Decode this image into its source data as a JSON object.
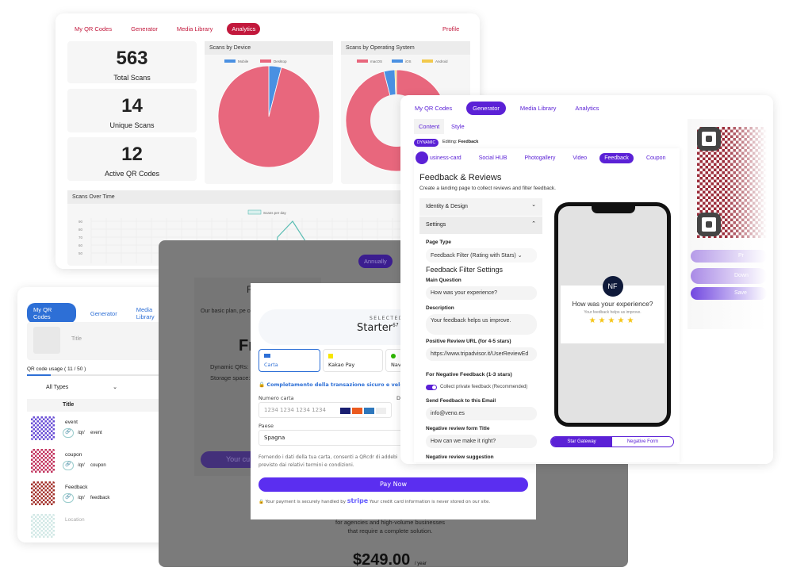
{
  "analytics": {
    "nav": [
      "My QR Codes",
      "Generator",
      "Media Library",
      "Analytics"
    ],
    "profile": "Profile",
    "stats": [
      {
        "value": "563",
        "label": "Total Scans"
      },
      {
        "value": "14",
        "label": "Unique Scans"
      },
      {
        "value": "12",
        "label": "Active QR Codes"
      }
    ],
    "device_title": "Scans by Device",
    "os_title": "Scans by Operating System",
    "time_title": "Scans Over Time",
    "chart_data": [
      {
        "type": "pie",
        "title": "Scans by Device",
        "categories": [
          "Mobile",
          "Desktop"
        ],
        "values": [
          4,
          96
        ],
        "colors": [
          "#4a90e2",
          "#e8677d"
        ],
        "legend": "top"
      },
      {
        "type": "pie",
        "title": "Scans by Operating System",
        "categories": [
          "macOS",
          "iOS",
          "Android"
        ],
        "values": [
          96,
          3.5,
          0.5
        ],
        "colors": [
          "#e8677d",
          "#4a90e2",
          "#f2c94c"
        ],
        "legend": "top"
      },
      {
        "type": "line",
        "title": "Scans Over Time",
        "series": [
          {
            "name": "Scans per day"
          }
        ],
        "y_ticks": [
          50,
          60,
          70,
          80,
          90
        ],
        "grid": true
      }
    ]
  },
  "qrlist": {
    "nav": [
      "My QR Codes",
      "Generator",
      "Media Library"
    ],
    "title_placeholder": "Title",
    "usage": "QR code usage ( 11 / 50 )",
    "usage_fraction": 0.22,
    "filter": "All Types",
    "column": "Title",
    "prefix": "/qr/",
    "items": [
      {
        "name": "event",
        "slug": "event"
      },
      {
        "name": "coupon",
        "slug": "coupon"
      },
      {
        "name": "Feedback",
        "slug": "feedback"
      },
      {
        "name": "Location",
        "slug": ""
      }
    ]
  },
  "pricing": {
    "annually": "Annually",
    "plan_initial": "F",
    "plan_desc": "Our basic plan, pe core capabilities",
    "price_initial": "Fr",
    "features": [
      "Dynamic QRs:",
      "Storage space:"
    ],
    "current_btn": "Your cu",
    "pro_desc": "for agencies and high-volume businesses that require a complete solution.",
    "pro_price": "$249.00",
    "pro_unit": "/ year"
  },
  "payment": {
    "selected": "SELECTED",
    "plan": "Starter",
    "plan_price": "$7",
    "methods": [
      "Carta",
      "Kakao Pay",
      "Nav"
    ],
    "secure": "Completamento della transazione sicuro e veloce co",
    "card_label": "Numero carta",
    "card_placeholder": "1234 1234 1234 1234",
    "expiry_label": "Da",
    "country_label": "Paese",
    "country": "Spagna",
    "consent": "Fornendo i dati della tua carta, consenti a QRcdr di addebi previsto dai relativi termini e condizioni.",
    "pay": "Pay Now",
    "footer_a": "Your payment is securely handled by",
    "stripe": "stripe",
    "footer_b": "Your credit card information is never stored on our site."
  },
  "generator": {
    "nav": [
      "My QR Codes",
      "Generator",
      "Media Library",
      "Analytics"
    ],
    "tabs": [
      "Content",
      "Style"
    ],
    "badge": "DYNAMIC",
    "editing_label": "Editing:",
    "editing": "Feedback",
    "types": [
      "usiness-card",
      "Social HUB",
      "Photogallery",
      "Video",
      "Feedback",
      "Coupon"
    ],
    "title": "Feedback & Reviews",
    "subtitle": "Create a landing page to collect reviews and filter feedback.",
    "sections": [
      "Identity & Design",
      "Settings"
    ],
    "page_type_label": "Page Type",
    "page_type": "Feedback Filter (Rating with Stars)",
    "filter_heading": "Feedback Filter Settings",
    "main_q_label": "Main Question",
    "main_q": "How was your experience?",
    "desc_label": "Description",
    "desc": "Your feedback helps us improve.",
    "url_label": "Positive Review URL (for 4-5 stars)",
    "url": "https://www.tripadvisor.it/UserReviewEd",
    "neg_heading": "For Negative Feedback (1-3 stars)",
    "toggle": "Collect private feedback (Recommended)",
    "toggle_on": true,
    "email_label": "Send Feedback to this Email",
    "email": "info@veno.es",
    "neg_title_label": "Negative review form Title",
    "neg_title": "How can we make it right?",
    "neg_sugg_label": "Negative review suggestion",
    "preview": {
      "logo": "NF",
      "question": "How was your experience?",
      "sub": "Your feedback helps us improve.",
      "stars": 5
    },
    "modes": [
      "Star Gateway",
      "Negative Form"
    ],
    "side_buttons": [
      "Pr",
      "Down",
      "Save"
    ]
  }
}
